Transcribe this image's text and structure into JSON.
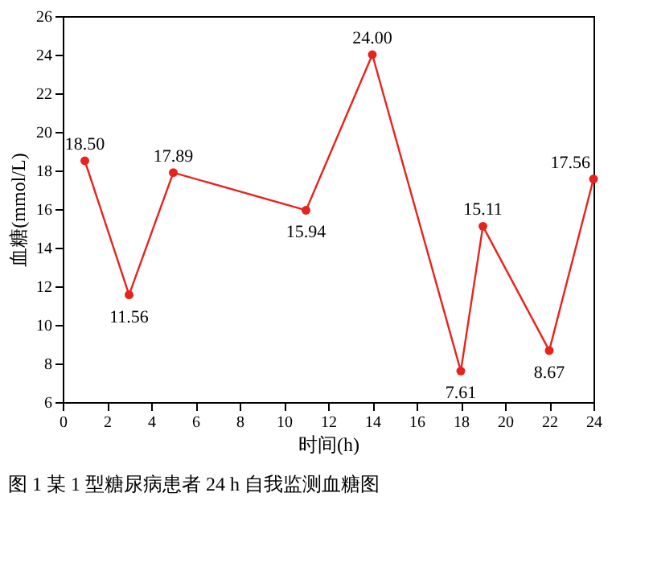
{
  "chart_data": {
    "type": "line",
    "xlabel": "时间(h)",
    "ylabel": "血糖(mmol/L)",
    "x": [
      1,
      3,
      5,
      11,
      14,
      18,
      19,
      22,
      24
    ],
    "series": [
      {
        "color": "#e8231c",
        "values": [
          18.5,
          11.56,
          17.89,
          15.94,
          24.0,
          7.61,
          15.11,
          8.67,
          17.56
        ],
        "value_labels": [
          "18.50",
          "11.56",
          "17.89",
          "15.94",
          "24.00",
          "7.61",
          "15.11",
          "8.67",
          "17.56"
        ]
      }
    ],
    "xlim": [
      0,
      24
    ],
    "xticks": [
      0,
      2,
      4,
      6,
      8,
      10,
      12,
      14,
      16,
      18,
      20,
      22,
      24
    ],
    "ylim": [
      6,
      26
    ],
    "yticks": [
      6,
      8,
      10,
      12,
      14,
      16,
      18,
      20,
      22,
      24,
      26
    ],
    "marker": "circle",
    "grid": false,
    "annotations": [
      "图 1 某 1 型糖尿病患者 24 h 自我监测血糖图"
    ]
  }
}
